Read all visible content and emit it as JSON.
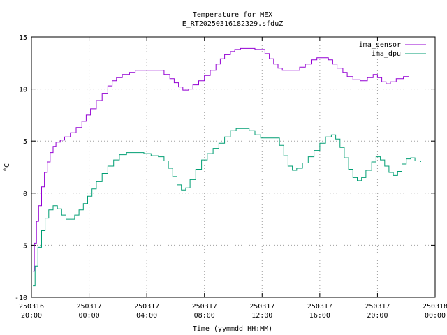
{
  "chart_data": {
    "type": "line",
    "title": "Temperature for MEX",
    "subtitle": "E_RT20250316182329.sfduZ",
    "xlabel": "Time (yymmdd HH:MM)",
    "ylabel": "°C",
    "ylim": [
      -10,
      15
    ],
    "yticks": [
      -10,
      -5,
      0,
      5,
      10,
      15
    ],
    "ytick_labels": [
      "-10",
      "-5",
      "0",
      "5",
      "10",
      "15"
    ],
    "xlim_hours": [
      0,
      28
    ],
    "xticks": [
      {
        "h": 0,
        "date": "250316",
        "time": "20:00"
      },
      {
        "h": 4,
        "date": "250317",
        "time": "00:00"
      },
      {
        "h": 8,
        "date": "250317",
        "time": "04:00"
      },
      {
        "h": 12,
        "date": "250317",
        "time": "08:00"
      },
      {
        "h": 16,
        "date": "250317",
        "time": "12:00"
      },
      {
        "h": 20,
        "date": "250317",
        "time": "16:00"
      },
      {
        "h": 24,
        "date": "250317",
        "time": "20:00"
      },
      {
        "h": 28,
        "date": "250318",
        "time": "00:00"
      }
    ],
    "grid": true,
    "legend_position": "top-right",
    "series": [
      {
        "name": "ima_sensor",
        "color": "#9400d3",
        "points": [
          [
            0.1,
            -7.5
          ],
          [
            0.2,
            -4.8
          ],
          [
            0.35,
            -2.7
          ],
          [
            0.5,
            -1.2
          ],
          [
            0.7,
            0.6
          ],
          [
            0.9,
            2.0
          ],
          [
            1.1,
            3.0
          ],
          [
            1.3,
            3.9
          ],
          [
            1.5,
            4.5
          ],
          [
            1.7,
            4.9
          ],
          [
            2.0,
            5.1
          ],
          [
            2.3,
            5.4
          ],
          [
            2.7,
            5.8
          ],
          [
            3.1,
            6.3
          ],
          [
            3.5,
            6.9
          ],
          [
            3.8,
            7.5
          ],
          [
            4.1,
            8.1
          ],
          [
            4.5,
            8.9
          ],
          [
            4.9,
            9.6
          ],
          [
            5.3,
            10.3
          ],
          [
            5.6,
            10.8
          ],
          [
            5.9,
            11.1
          ],
          [
            6.3,
            11.4
          ],
          [
            6.8,
            11.6
          ],
          [
            7.2,
            11.8
          ],
          [
            7.6,
            11.8
          ],
          [
            8.2,
            11.8
          ],
          [
            8.8,
            11.8
          ],
          [
            9.2,
            11.4
          ],
          [
            9.6,
            11.0
          ],
          [
            9.9,
            10.6
          ],
          [
            10.2,
            10.2
          ],
          [
            10.5,
            9.9
          ],
          [
            10.9,
            10.0
          ],
          [
            11.2,
            10.4
          ],
          [
            11.6,
            10.8
          ],
          [
            12.0,
            11.3
          ],
          [
            12.4,
            11.8
          ],
          [
            12.8,
            12.4
          ],
          [
            13.1,
            12.9
          ],
          [
            13.4,
            13.3
          ],
          [
            13.8,
            13.6
          ],
          [
            14.1,
            13.8
          ],
          [
            14.5,
            13.9
          ],
          [
            15.0,
            13.9
          ],
          [
            15.5,
            13.8
          ],
          [
            15.9,
            13.8
          ],
          [
            16.2,
            13.4
          ],
          [
            16.5,
            12.9
          ],
          [
            16.8,
            12.4
          ],
          [
            17.1,
            12.0
          ],
          [
            17.4,
            11.8
          ],
          [
            17.8,
            11.8
          ],
          [
            18.2,
            11.8
          ],
          [
            18.6,
            12.1
          ],
          [
            19.0,
            12.4
          ],
          [
            19.4,
            12.8
          ],
          [
            19.8,
            13.0
          ],
          [
            20.2,
            13.0
          ],
          [
            20.6,
            12.8
          ],
          [
            20.9,
            12.4
          ],
          [
            21.2,
            12.0
          ],
          [
            21.6,
            11.6
          ],
          [
            21.9,
            11.2
          ],
          [
            22.3,
            10.9
          ],
          [
            22.8,
            10.8
          ],
          [
            23.3,
            11.1
          ],
          [
            23.7,
            11.4
          ],
          [
            24.0,
            11.1
          ],
          [
            24.3,
            10.7
          ],
          [
            24.6,
            10.5
          ],
          [
            24.9,
            10.7
          ],
          [
            25.3,
            11.0
          ],
          [
            25.8,
            11.2
          ],
          [
            26.2,
            11.2
          ]
        ]
      },
      {
        "name": "ima_dpu",
        "color": "#009e73",
        "points": [
          [
            0.1,
            -8.9
          ],
          [
            0.25,
            -7.0
          ],
          [
            0.45,
            -5.2
          ],
          [
            0.7,
            -3.6
          ],
          [
            0.95,
            -2.4
          ],
          [
            1.2,
            -1.6
          ],
          [
            1.5,
            -1.2
          ],
          [
            1.8,
            -1.5
          ],
          [
            2.1,
            -2.1
          ],
          [
            2.4,
            -2.5
          ],
          [
            2.7,
            -2.5
          ],
          [
            3.0,
            -2.1
          ],
          [
            3.3,
            -1.6
          ],
          [
            3.6,
            -1.0
          ],
          [
            3.9,
            -0.3
          ],
          [
            4.2,
            0.4
          ],
          [
            4.5,
            1.1
          ],
          [
            4.9,
            1.9
          ],
          [
            5.3,
            2.6
          ],
          [
            5.7,
            3.2
          ],
          [
            6.1,
            3.7
          ],
          [
            6.6,
            3.9
          ],
          [
            7.2,
            3.9
          ],
          [
            7.8,
            3.8
          ],
          [
            8.3,
            3.6
          ],
          [
            8.8,
            3.5
          ],
          [
            9.2,
            3.1
          ],
          [
            9.5,
            2.4
          ],
          [
            9.8,
            1.6
          ],
          [
            10.1,
            0.8
          ],
          [
            10.4,
            0.3
          ],
          [
            10.7,
            0.5
          ],
          [
            11.0,
            1.3
          ],
          [
            11.4,
            2.3
          ],
          [
            11.8,
            3.2
          ],
          [
            12.2,
            3.8
          ],
          [
            12.6,
            4.3
          ],
          [
            13.0,
            4.8
          ],
          [
            13.4,
            5.4
          ],
          [
            13.8,
            6.0
          ],
          [
            14.2,
            6.2
          ],
          [
            14.7,
            6.2
          ],
          [
            15.1,
            6.0
          ],
          [
            15.5,
            5.6
          ],
          [
            15.9,
            5.3
          ],
          [
            16.4,
            5.3
          ],
          [
            16.9,
            5.3
          ],
          [
            17.2,
            4.6
          ],
          [
            17.5,
            3.6
          ],
          [
            17.8,
            2.6
          ],
          [
            18.1,
            2.2
          ],
          [
            18.4,
            2.4
          ],
          [
            18.8,
            2.9
          ],
          [
            19.2,
            3.5
          ],
          [
            19.6,
            4.1
          ],
          [
            20.0,
            4.8
          ],
          [
            20.4,
            5.4
          ],
          [
            20.8,
            5.6
          ],
          [
            21.1,
            5.2
          ],
          [
            21.4,
            4.4
          ],
          [
            21.7,
            3.4
          ],
          [
            22.0,
            2.3
          ],
          [
            22.3,
            1.5
          ],
          [
            22.6,
            1.2
          ],
          [
            22.9,
            1.5
          ],
          [
            23.2,
            2.2
          ],
          [
            23.6,
            3.0
          ],
          [
            23.9,
            3.5
          ],
          [
            24.2,
            3.2
          ],
          [
            24.5,
            2.6
          ],
          [
            24.8,
            2.0
          ],
          [
            25.1,
            1.7
          ],
          [
            25.4,
            2.1
          ],
          [
            25.7,
            2.8
          ],
          [
            26.0,
            3.3
          ],
          [
            26.3,
            3.4
          ],
          [
            26.6,
            3.1
          ],
          [
            27.0,
            3.0
          ]
        ]
      }
    ]
  }
}
